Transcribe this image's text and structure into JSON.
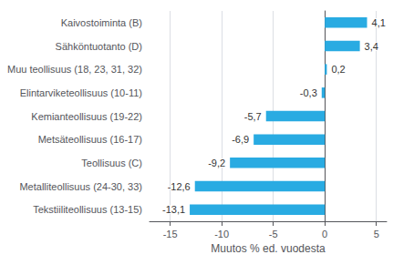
{
  "chart_data": {
    "type": "bar",
    "orientation": "horizontal",
    "categories": [
      "Tekstiiliteollisuus (13-15)",
      "Metalliteollisuus (24-30, 33)",
      "Teollisuus (C)",
      "Metsäteollisuus (16-17)",
      "Kemianteollisuus (19-22)",
      "Elintarviketeollisuus (10-11)",
      "Muu teollisuus (18, 23, 31, 32)",
      "Sähköntuotanto (D)",
      "Kaivostoiminta (B)"
    ],
    "values": [
      -13.1,
      -12.6,
      -9.2,
      -6.9,
      -5.7,
      -0.3,
      0.2,
      3.4,
      4.1
    ],
    "value_labels": [
      "-13,1",
      "-12,6",
      "-9,2",
      "-6,9",
      "-5,7",
      "-0,3",
      "0,2",
      "3,4",
      "4,1"
    ],
    "data_labels": true,
    "color": "#29abe2",
    "xlabel": "Muutos % ed. vuodesta",
    "xlim": [
      -17,
      6
    ],
    "xticks": [
      -15,
      -10,
      -5,
      0,
      5
    ],
    "grid": true
  }
}
